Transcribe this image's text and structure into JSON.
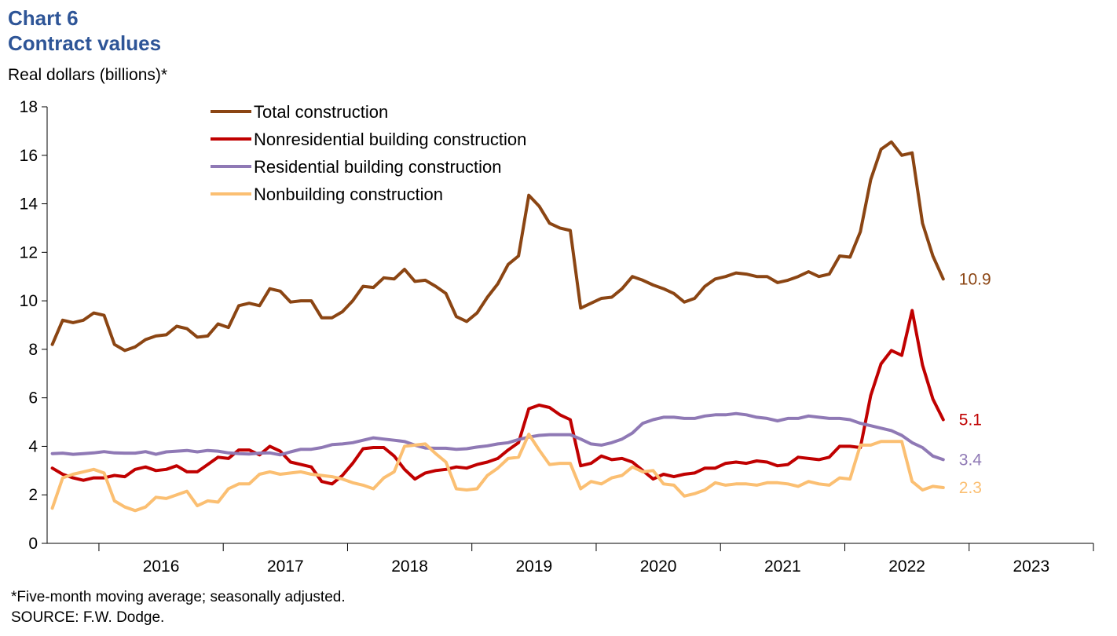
{
  "header": {
    "chart_number": "Chart 6",
    "title": "Contract values",
    "y_axis_label": "Real dollars (billions)*"
  },
  "footer": {
    "note": "*Five-month moving average; seasonally adjusted.",
    "source": "SOURCE: F.W. Dodge."
  },
  "chart_data": {
    "type": "line",
    "title": "Contract values",
    "ylabel": "Real dollars (billions)*",
    "xlabel": "",
    "ylim": [
      0,
      18
    ],
    "yticks": [
      0,
      2,
      4,
      6,
      8,
      10,
      12,
      14,
      16,
      18
    ],
    "x_start": "2015-08",
    "x_end": "2023-12",
    "x_tick_labels": [
      "2016",
      "2017",
      "2018",
      "2019",
      "2020",
      "2021",
      "2022",
      "2023"
    ],
    "grid": false,
    "legend_position": "top-left",
    "series": [
      {
        "name": "Total construction",
        "color": "#8b4513",
        "end_label": "10.9",
        "values": [
          8.2,
          9.2,
          9.1,
          9.2,
          9.5,
          9.4,
          8.2,
          7.95,
          8.1,
          8.4,
          8.55,
          8.6,
          8.95,
          8.85,
          8.5,
          8.55,
          9.05,
          8.9,
          9.8,
          9.9,
          9.8,
          10.5,
          10.4,
          9.95,
          10.0,
          10.0,
          9.3,
          9.3,
          9.55,
          10.0,
          10.6,
          10.55,
          10.95,
          10.9,
          11.3,
          10.8,
          10.85,
          10.6,
          10.3,
          9.35,
          9.15,
          9.5,
          10.15,
          10.7,
          11.5,
          11.85,
          14.35,
          13.9,
          13.2,
          13.0,
          12.9,
          9.7,
          9.9,
          10.1,
          10.15,
          10.5,
          11.0,
          10.85,
          10.65,
          10.5,
          10.3,
          9.95,
          10.1,
          10.6,
          10.9,
          11.0,
          11.15,
          11.1,
          11.0,
          11.0,
          10.75,
          10.85,
          11.0,
          11.2,
          11.0,
          11.1,
          11.85,
          11.8,
          12.85,
          15.0,
          16.25,
          16.55,
          16.0,
          16.1,
          13.2,
          11.85,
          10.9
        ]
      },
      {
        "name": "Nonresidential building construction",
        "color": "#c00000",
        "end_label": "5.1",
        "values": [
          3.1,
          2.85,
          2.7,
          2.6,
          2.7,
          2.7,
          2.8,
          2.75,
          3.05,
          3.15,
          3.0,
          3.05,
          3.2,
          2.95,
          2.95,
          3.25,
          3.55,
          3.5,
          3.85,
          3.85,
          3.65,
          4.0,
          3.8,
          3.35,
          3.25,
          3.15,
          2.55,
          2.45,
          2.8,
          3.3,
          3.9,
          3.95,
          3.95,
          3.6,
          3.05,
          2.65,
          2.9,
          3.0,
          3.05,
          3.15,
          3.1,
          3.25,
          3.35,
          3.5,
          3.85,
          4.15,
          5.55,
          5.7,
          5.6,
          5.3,
          5.1,
          3.2,
          3.3,
          3.6,
          3.45,
          3.5,
          3.35,
          3.0,
          2.65,
          2.85,
          2.75,
          2.85,
          2.9,
          3.1,
          3.1,
          3.3,
          3.35,
          3.3,
          3.4,
          3.35,
          3.2,
          3.25,
          3.55,
          3.5,
          3.45,
          3.55,
          4.0,
          4.0,
          3.95,
          6.1,
          7.4,
          7.95,
          7.75,
          9.6,
          7.35,
          5.95,
          5.1
        ]
      },
      {
        "name": "Residential building construction",
        "color": "#8f79b5",
        "end_label": "3.4",
        "values": [
          3.7,
          3.72,
          3.67,
          3.7,
          3.73,
          3.78,
          3.73,
          3.72,
          3.72,
          3.78,
          3.67,
          3.77,
          3.8,
          3.83,
          3.77,
          3.83,
          3.8,
          3.73,
          3.7,
          3.68,
          3.72,
          3.73,
          3.65,
          3.77,
          3.88,
          3.88,
          3.95,
          4.07,
          4.1,
          4.15,
          4.25,
          4.35,
          4.3,
          4.25,
          4.2,
          4.05,
          3.93,
          3.92,
          3.92,
          3.88,
          3.9,
          3.97,
          4.02,
          4.1,
          4.15,
          4.28,
          4.38,
          4.45,
          4.48,
          4.48,
          4.48,
          4.3,
          4.1,
          4.05,
          4.15,
          4.3,
          4.55,
          4.95,
          5.1,
          5.2,
          5.2,
          5.15,
          5.15,
          5.25,
          5.3,
          5.3,
          5.35,
          5.3,
          5.2,
          5.15,
          5.05,
          5.15,
          5.15,
          5.25,
          5.2,
          5.15,
          5.15,
          5.1,
          4.95,
          4.85,
          4.75,
          4.65,
          4.45,
          4.15,
          3.95,
          3.6,
          3.45
        ]
      },
      {
        "name": "Nonbuilding construction",
        "color": "#fbbf72",
        "end_label": "2.3",
        "values": [
          1.45,
          2.7,
          2.85,
          2.95,
          3.05,
          2.9,
          1.75,
          1.5,
          1.35,
          1.5,
          1.9,
          1.85,
          2.0,
          2.15,
          1.55,
          1.75,
          1.7,
          2.25,
          2.45,
          2.45,
          2.85,
          2.95,
          2.85,
          2.9,
          2.95,
          2.85,
          2.8,
          2.75,
          2.65,
          2.5,
          2.4,
          2.25,
          2.7,
          2.95,
          4.0,
          4.05,
          4.1,
          3.7,
          3.35,
          2.25,
          2.2,
          2.25,
          2.8,
          3.1,
          3.5,
          3.55,
          4.5,
          3.85,
          3.25,
          3.3,
          3.3,
          2.25,
          2.55,
          2.45,
          2.7,
          2.8,
          3.15,
          2.95,
          3.0,
          2.45,
          2.4,
          1.95,
          2.05,
          2.2,
          2.5,
          2.4,
          2.45,
          2.45,
          2.4,
          2.5,
          2.5,
          2.45,
          2.35,
          2.55,
          2.45,
          2.4,
          2.7,
          2.65,
          4.05,
          4.05,
          4.2,
          4.2,
          4.2,
          2.55,
          2.2,
          2.35,
          2.3
        ]
      }
    ]
  }
}
